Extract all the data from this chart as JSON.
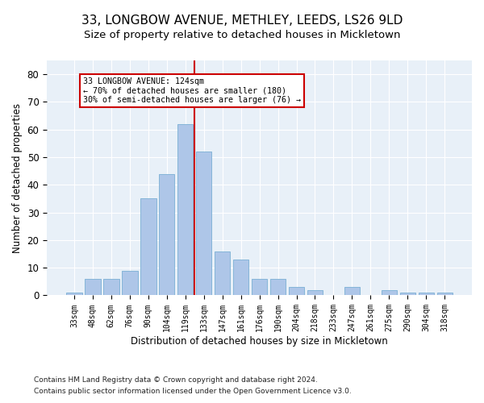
{
  "title": "33, LONGBOW AVENUE, METHLEY, LEEDS, LS26 9LD",
  "subtitle": "Size of property relative to detached houses in Mickletown",
  "xlabel": "Distribution of detached houses by size in Mickletown",
  "ylabel": "Number of detached properties",
  "categories": [
    "33sqm",
    "48sqm",
    "62sqm",
    "76sqm",
    "90sqm",
    "104sqm",
    "119sqm",
    "133sqm",
    "147sqm",
    "161sqm",
    "176sqm",
    "190sqm",
    "204sqm",
    "218sqm",
    "233sqm",
    "247sqm",
    "261sqm",
    "275sqm",
    "290sqm",
    "304sqm",
    "318sqm"
  ],
  "values": [
    1,
    6,
    6,
    9,
    35,
    44,
    62,
    52,
    16,
    13,
    6,
    6,
    3,
    2,
    0,
    3,
    0,
    2,
    1,
    1,
    1
  ],
  "bar_color": "#aec6e8",
  "bar_edge_color": "#7aafd4",
  "vline_x": 6.5,
  "vline_color": "#cc0000",
  "annotation_text": "33 LONGBOW AVENUE: 124sqm\n← 70% of detached houses are smaller (180)\n30% of semi-detached houses are larger (76) →",
  "annotation_box_color": "#ffffff",
  "annotation_box_edge": "#cc0000",
  "ylim": [
    0,
    85
  ],
  "yticks": [
    0,
    10,
    20,
    30,
    40,
    50,
    60,
    70,
    80
  ],
  "bg_color": "#e8f0f8",
  "footer1": "Contains HM Land Registry data © Crown copyright and database right 2024.",
  "footer2": "Contains public sector information licensed under the Open Government Licence v3.0.",
  "title_fontsize": 11,
  "subtitle_fontsize": 9.5
}
